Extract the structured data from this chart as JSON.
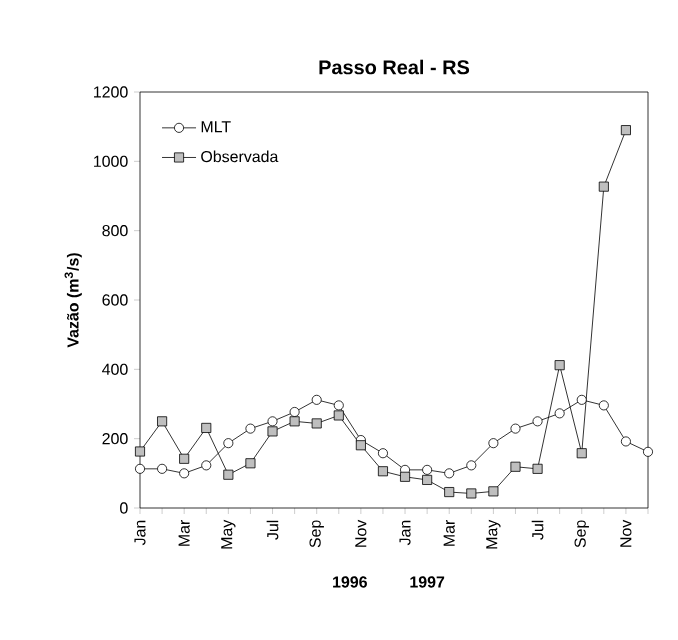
{
  "chart_data": {
    "type": "line",
    "title": "Passo Real - RS",
    "ylabel": "Vazão (m$^{3}$/s)",
    "categories": [
      "Jan",
      null,
      "Mar",
      null,
      "May",
      null,
      "Jul",
      null,
      "Sep",
      null,
      "Nov",
      null,
      "Jan",
      null,
      "Mar",
      null,
      "May",
      null,
      "Jul",
      null,
      "Sep",
      null,
      "Nov",
      null
    ],
    "series": [
      {
        "name": "MLT",
        "color": "#000000",
        "marker": "circle",
        "values": [
          113,
          113,
          100,
          123,
          187,
          229,
          250,
          277,
          312,
          296,
          196,
          158,
          110,
          110,
          100,
          123,
          187,
          229,
          250,
          273,
          312,
          296,
          192,
          162
        ]
      },
      {
        "name": "Observada",
        "color": "#000000",
        "marker": "square",
        "values": [
          163,
          250,
          142,
          231,
          96,
          129,
          221,
          250,
          244,
          267,
          181,
          106,
          90,
          81,
          46,
          42,
          48,
          119,
          113,
          412,
          158,
          927,
          1090,
          null
        ]
      }
    ],
    "ylim": [
      0,
      1200
    ],
    "yticks": [
      0,
      200,
      400,
      600,
      800,
      1000,
      1200
    ],
    "annotations": [
      "1996",
      "1997"
    ],
    "legend": "top left",
    "grid": false,
    "line_style": "solid"
  }
}
